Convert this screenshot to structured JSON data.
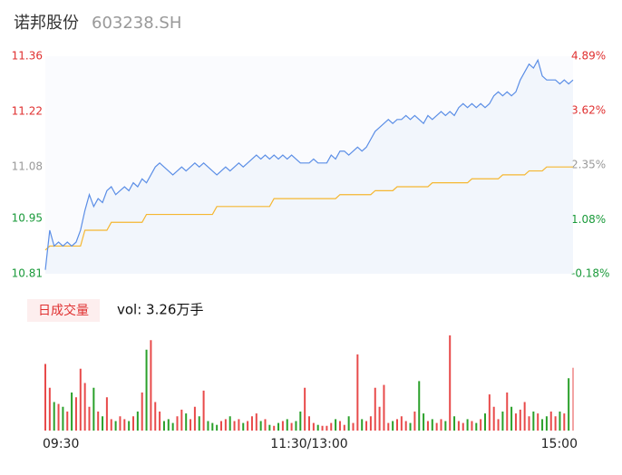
{
  "chart_data": {
    "type": "line",
    "title": "诺邦股份",
    "subtitle": "603238.SH",
    "xlim": [
      0,
      120
    ],
    "xticks": [
      {
        "value": 0,
        "label": "09:30"
      },
      {
        "value": 60,
        "label": "11:30/13:00"
      },
      {
        "value": 120,
        "label": "15:00"
      }
    ],
    "ylim": [
      10.81,
      11.36
    ],
    "yticks": [
      10.81,
      10.95,
      11.08,
      11.22,
      11.36
    ],
    "y2lim": [
      -0.18,
      4.89
    ],
    "y2ticks": [
      {
        "value": -0.18,
        "label": "-0.18%"
      },
      {
        "value": 1.08,
        "label": "1.08%"
      },
      {
        "value": 2.35,
        "label": "2.35%"
      },
      {
        "value": 3.62,
        "label": "3.62%"
      },
      {
        "value": 4.89,
        "label": "4.89%"
      }
    ],
    "series": [
      {
        "color": "#5b8ee6",
        "values": [
          10.82,
          10.92,
          10.88,
          10.89,
          10.88,
          10.89,
          10.88,
          10.89,
          10.92,
          10.97,
          11.01,
          10.98,
          11.0,
          10.99,
          11.02,
          11.03,
          11.01,
          11.02,
          11.03,
          11.02,
          11.04,
          11.03,
          11.05,
          11.04,
          11.06,
          11.08,
          11.09,
          11.08,
          11.07,
          11.06,
          11.07,
          11.08,
          11.07,
          11.08,
          11.09,
          11.08,
          11.09,
          11.08,
          11.07,
          11.06,
          11.07,
          11.08,
          11.07,
          11.08,
          11.09,
          11.08,
          11.09,
          11.1,
          11.11,
          11.1,
          11.11,
          11.1,
          11.11,
          11.1,
          11.11,
          11.1,
          11.11,
          11.1,
          11.09,
          11.09,
          11.09,
          11.1,
          11.09,
          11.09,
          11.09,
          11.11,
          11.1,
          11.12,
          11.12,
          11.11,
          11.12,
          11.13,
          11.12,
          11.13,
          11.15,
          11.17,
          11.18,
          11.19,
          11.2,
          11.19,
          11.2,
          11.2,
          11.21,
          11.2,
          11.21,
          11.2,
          11.19,
          11.21,
          11.2,
          11.21,
          11.22,
          11.21,
          11.22,
          11.21,
          11.23,
          11.24,
          11.23,
          11.24,
          11.23,
          11.24,
          11.23,
          11.24,
          11.26,
          11.27,
          11.26,
          11.27,
          11.26,
          11.27,
          11.3,
          11.32,
          11.34,
          11.33,
          11.35,
          11.31,
          11.3,
          11.3,
          11.3,
          11.29,
          11.3,
          11.29,
          11.3
        ]
      },
      {
        "color": "#f5b731",
        "values": [
          10.87,
          10.88,
          10.88,
          10.88,
          10.88,
          10.88,
          10.88,
          10.88,
          10.88,
          10.92,
          10.92,
          10.92,
          10.92,
          10.92,
          10.92,
          10.94,
          10.94,
          10.94,
          10.94,
          10.94,
          10.94,
          10.94,
          10.94,
          10.96,
          10.96,
          10.96,
          10.96,
          10.96,
          10.96,
          10.96,
          10.96,
          10.96,
          10.96,
          10.96,
          10.96,
          10.96,
          10.96,
          10.96,
          10.96,
          10.98,
          10.98,
          10.98,
          10.98,
          10.98,
          10.98,
          10.98,
          10.98,
          10.98,
          10.98,
          10.98,
          10.98,
          10.98,
          11.0,
          11.0,
          11.0,
          11.0,
          11.0,
          11.0,
          11.0,
          11.0,
          11.0,
          11.0,
          11.0,
          11.0,
          11.0,
          11.0,
          11.0,
          11.01,
          11.01,
          11.01,
          11.01,
          11.01,
          11.01,
          11.01,
          11.01,
          11.02,
          11.02,
          11.02,
          11.02,
          11.02,
          11.03,
          11.03,
          11.03,
          11.03,
          11.03,
          11.03,
          11.03,
          11.03,
          11.04,
          11.04,
          11.04,
          11.04,
          11.04,
          11.04,
          11.04,
          11.04,
          11.04,
          11.05,
          11.05,
          11.05,
          11.05,
          11.05,
          11.05,
          11.05,
          11.06,
          11.06,
          11.06,
          11.06,
          11.06,
          11.06,
          11.07,
          11.07,
          11.07,
          11.07,
          11.08,
          11.08,
          11.08,
          11.08,
          11.08,
          11.08,
          11.08
        ]
      }
    ],
    "volume": {
      "button": "日成交量",
      "label": "vol: 3.26万手",
      "up_color": "#e84a4a",
      "down_color": "#2aa02a",
      "ylim": [
        0,
        100
      ],
      "values": [
        70,
        45,
        30,
        28,
        25,
        20,
        40,
        35,
        65,
        50,
        25,
        45,
        20,
        15,
        35,
        12,
        10,
        15,
        12,
        10,
        15,
        20,
        40,
        85,
        95,
        30,
        20,
        10,
        12,
        8,
        15,
        22,
        18,
        12,
        25,
        15,
        42,
        10,
        8,
        6,
        10,
        12,
        15,
        10,
        12,
        8,
        10,
        15,
        18,
        10,
        12,
        6,
        5,
        8,
        10,
        12,
        8,
        10,
        20,
        45,
        15,
        8,
        6,
        5,
        5,
        8,
        12,
        10,
        6,
        15,
        8,
        80,
        12,
        10,
        15,
        45,
        25,
        48,
        8,
        10,
        12,
        15,
        10,
        8,
        20,
        52,
        18,
        10,
        12,
        8,
        12,
        10,
        100,
        15,
        10,
        8,
        12,
        10,
        8,
        12,
        18,
        38,
        25,
        12,
        20,
        40,
        25,
        18,
        22,
        30,
        15,
        20,
        18,
        12,
        15,
        20,
        15,
        20,
        18,
        55,
        66
      ]
    }
  }
}
